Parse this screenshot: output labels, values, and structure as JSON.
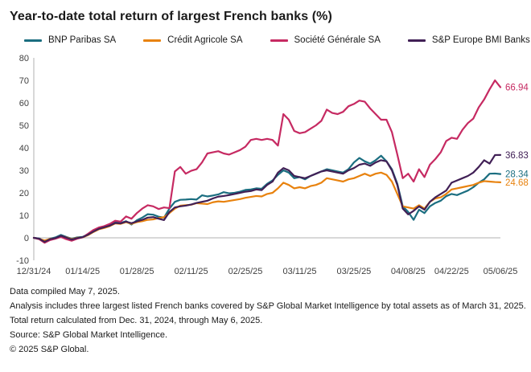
{
  "title": "Year-to-date total return of largest French banks (%)",
  "chart_data": {
    "type": "line",
    "x": [
      "12/31/24",
      "01/02/25",
      "01/03/25",
      "01/06/25",
      "01/07/25",
      "01/08/25",
      "01/09/25",
      "01/10/25",
      "01/13/25",
      "01/14/25",
      "01/15/25",
      "01/16/25",
      "01/17/25",
      "01/20/25",
      "01/21/25",
      "01/22/25",
      "01/23/25",
      "01/24/25",
      "01/27/25",
      "01/28/25",
      "01/29/25",
      "01/30/25",
      "01/31/25",
      "02/03/25",
      "02/04/25",
      "02/05/25",
      "02/06/25",
      "02/07/25",
      "02/10/25",
      "02/11/25",
      "02/12/25",
      "02/13/25",
      "02/14/25",
      "02/17/25",
      "02/18/25",
      "02/19/25",
      "02/20/25",
      "02/21/25",
      "02/24/25",
      "02/25/25",
      "02/26/25",
      "02/27/25",
      "02/28/25",
      "03/03/25",
      "03/04/25",
      "03/05/25",
      "03/06/25",
      "03/07/25",
      "03/10/25",
      "03/11/25",
      "03/12/25",
      "03/13/25",
      "03/14/25",
      "03/17/25",
      "03/18/25",
      "03/19/25",
      "03/20/25",
      "03/21/25",
      "03/24/25",
      "03/25/25",
      "03/26/25",
      "03/27/25",
      "03/28/25",
      "03/31/25",
      "04/01/25",
      "04/02/25",
      "04/03/25",
      "04/04/25",
      "04/07/25",
      "04/08/25",
      "04/09/25",
      "04/10/25",
      "04/11/25",
      "04/14/25",
      "04/15/25",
      "04/16/25",
      "04/17/25",
      "04/22/25",
      "04/23/25",
      "04/24/25",
      "04/25/25",
      "04/28/25",
      "04/29/25",
      "04/30/25",
      "05/02/25",
      "05/05/25",
      "05/06/25"
    ],
    "tick_indices": [
      0,
      9,
      19,
      29,
      39,
      49,
      59,
      69,
      77,
      86
    ],
    "tick_labels": [
      "12/31/24",
      "01/14/25",
      "01/28/25",
      "02/11/25",
      "02/25/25",
      "03/11/25",
      "03/25/25",
      "04/08/25",
      "04/22/25",
      "05/06/25"
    ],
    "ylim": [
      -10,
      80
    ],
    "y_ticks": [
      80,
      70,
      60,
      50,
      40,
      30,
      20,
      10,
      0,
      -10
    ],
    "axis_color": "#b0b0b0",
    "tick_text_color": "#404040",
    "zero_line_value": 0,
    "series": [
      {
        "name": "BNP Paribas SA",
        "color": "#1b6e80",
        "end_label": "28.34",
        "values": [
          0,
          -0.3,
          -1.6,
          -0.4,
          0.2,
          1.3,
          0.4,
          -0.4,
          0.2,
          0.4,
          1.5,
          3.0,
          4.3,
          4.9,
          5.6,
          6.9,
          6.6,
          7.4,
          5.9,
          7.8,
          9.0,
          10.5,
          10.3,
          9.4,
          9.0,
          13.0,
          16.0,
          16.9,
          17.0,
          17.2,
          17.0,
          18.9,
          18.4,
          18.8,
          19.3,
          20.3,
          19.8,
          20.0,
          20.5,
          21.3,
          21.5,
          22.0,
          21.8,
          24.0,
          25.5,
          28.0,
          30.0,
          29.0,
          26.5,
          27.0,
          26.0,
          27.5,
          28.5,
          29.5,
          30.5,
          30.0,
          29.5,
          29.0,
          30.5,
          33.5,
          35.5,
          34.0,
          33.0,
          34.5,
          36.5,
          34.0,
          30.5,
          24.0,
          14.0,
          11.5,
          8.0,
          12.5,
          11.0,
          14.0,
          15.5,
          16.5,
          18.5,
          19.5,
          19.0,
          20.0,
          21.0,
          22.5,
          24.5,
          26.0,
          28.5,
          28.6,
          28.34
        ]
      },
      {
        "name": "Crédit Agricole SA",
        "color": "#e8820e",
        "end_label": "24.68",
        "values": [
          0,
          -0.5,
          -1.2,
          -0.5,
          -0.2,
          0.8,
          0.2,
          -0.6,
          0.0,
          0.2,
          1.2,
          2.6,
          3.8,
          4.4,
          5.2,
          6.4,
          6.2,
          7.0,
          6.2,
          7.0,
          7.4,
          8.0,
          8.2,
          8.8,
          9.2,
          11.0,
          13.0,
          14.3,
          14.5,
          14.7,
          15.4,
          15.2,
          15.0,
          15.8,
          16.2,
          16.0,
          16.4,
          16.8,
          17.2,
          17.8,
          18.2,
          18.6,
          18.4,
          19.5,
          20.0,
          22.0,
          24.5,
          23.5,
          22.0,
          22.5,
          22.0,
          23.0,
          23.5,
          24.5,
          26.5,
          26.0,
          25.5,
          25.0,
          26.0,
          26.5,
          27.5,
          28.5,
          27.5,
          28.5,
          29.0,
          28.0,
          25.0,
          19.5,
          14.0,
          13.5,
          13.0,
          14.5,
          13.0,
          16.0,
          17.5,
          18.0,
          19.5,
          21.5,
          22.0,
          22.5,
          23.0,
          23.5,
          24.5,
          25.2,
          25.0,
          24.8,
          24.68
        ]
      },
      {
        "name": "Société Générale SA",
        "color": "#c62a62",
        "end_label": "66.94",
        "values": [
          0,
          -0.6,
          -2.2,
          -1.0,
          -0.4,
          0.4,
          -0.6,
          -1.3,
          -0.4,
          0.2,
          1.8,
          3.5,
          4.6,
          5.2,
          6.2,
          7.6,
          7.2,
          9.5,
          8.5,
          11.0,
          13.0,
          14.5,
          14.0,
          12.8,
          13.5,
          13.2,
          29.5,
          31.5,
          28.5,
          29.8,
          30.5,
          33.5,
          37.5,
          38.0,
          38.5,
          37.5,
          37.0,
          38.0,
          39.0,
          40.5,
          43.5,
          44.0,
          43.5,
          44.0,
          43.5,
          41.0,
          55.0,
          52.5,
          47.5,
          46.5,
          47.0,
          48.5,
          50.0,
          52.0,
          57.0,
          55.5,
          55.0,
          56.0,
          58.5,
          59.5,
          61.0,
          60.5,
          57.5,
          55.0,
          52.5,
          52.5,
          47.0,
          37.0,
          26.5,
          28.5,
          25.0,
          30.5,
          27.0,
          32.5,
          35.0,
          38.0,
          43.0,
          44.5,
          44.0,
          48.0,
          51.0,
          53.0,
          58.0,
          61.5,
          66.0,
          70.0,
          66.94
        ]
      },
      {
        "name": "S&P Europe BMI Banks",
        "color": "#412056",
        "end_label": "36.83",
        "values": [
          0,
          -0.4,
          -1.8,
          -0.6,
          -0.1,
          0.9,
          0.1,
          -0.8,
          -0.1,
          0.3,
          1.4,
          2.8,
          4.0,
          4.7,
          5.4,
          6.6,
          6.4,
          7.2,
          6.5,
          7.3,
          8.0,
          9.0,
          9.2,
          8.5,
          7.9,
          11.5,
          13.5,
          14.0,
          14.3,
          14.8,
          15.5,
          16.0,
          16.5,
          17.5,
          18.3,
          18.6,
          19.0,
          19.5,
          20.0,
          20.5,
          20.8,
          21.5,
          21.2,
          23.5,
          25.0,
          29.0,
          31.0,
          30.0,
          27.5,
          27.0,
          26.5,
          27.5,
          28.5,
          29.5,
          30.0,
          29.5,
          29.0,
          28.5,
          30.0,
          31.0,
          32.5,
          33.0,
          32.0,
          33.5,
          34.5,
          34.0,
          30.0,
          23.5,
          13.0,
          10.4,
          12.0,
          14.0,
          12.5,
          16.0,
          18.0,
          19.5,
          21.0,
          24.5,
          25.5,
          26.5,
          27.5,
          29.0,
          31.5,
          34.5,
          33.0,
          36.8,
          36.83
        ]
      }
    ]
  },
  "footnotes": [
    "Data compiled May 7, 2025.",
    "Analysis includes three largest listed French banks covered by S&P Global Market Intelligence by total assets as of March 31, 2025.",
    "Total return calculated from Dec. 31, 2024, through May 6, 2025.",
    "Source: S&P Global Market Intelligence.",
    "© 2025 S&P Global."
  ]
}
